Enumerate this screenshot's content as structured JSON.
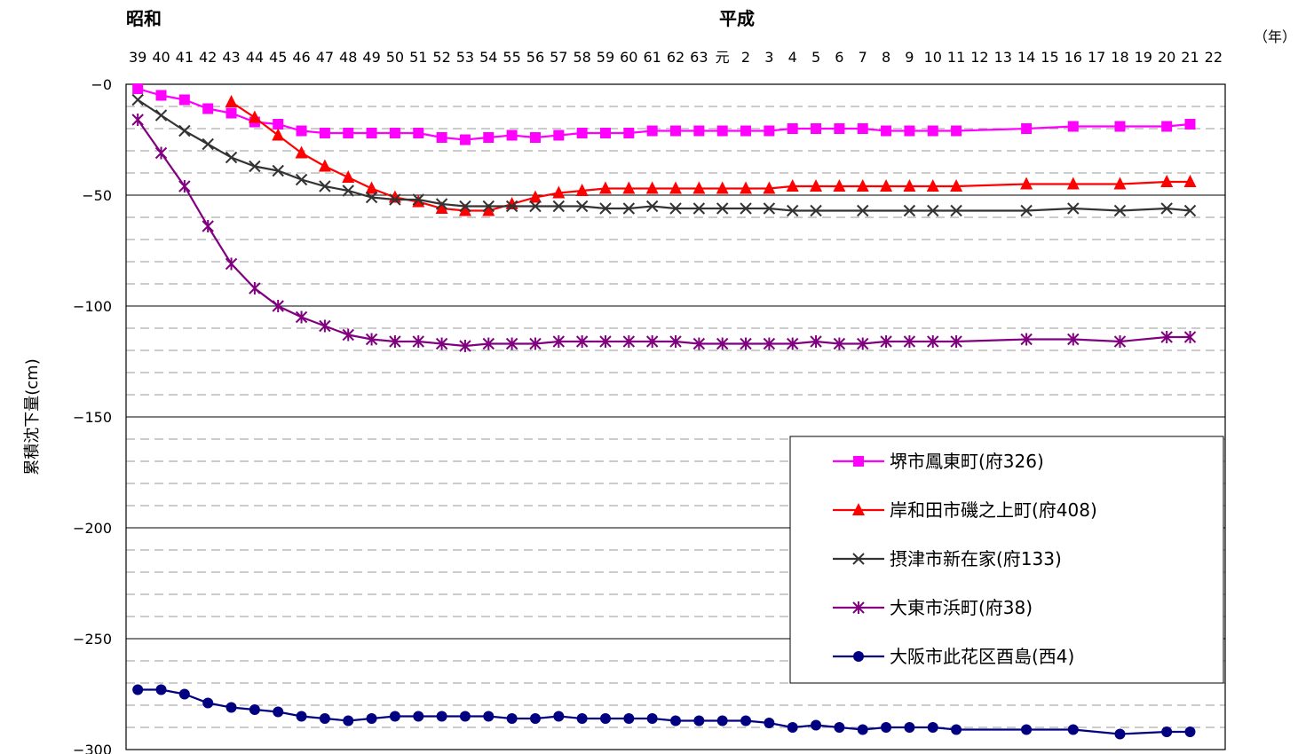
{
  "chart_data": {
    "type": "line",
    "era_labels": [
      "昭和",
      "平成"
    ],
    "x_unit": "（年）",
    "ylabel": "累積沈下量(cm)",
    "ylim": [
      -300,
      0
    ],
    "yticks": [
      "−0",
      "−50",
      "−100",
      "−150",
      "−200",
      "−250",
      "−300"
    ],
    "grid": "major solid, minor dashed",
    "legend_position": "lower-right",
    "categories": [
      "39",
      "40",
      "41",
      "42",
      "43",
      "44",
      "45",
      "46",
      "47",
      "48",
      "49",
      "50",
      "51",
      "52",
      "53",
      "54",
      "55",
      "56",
      "57",
      "58",
      "59",
      "60",
      "61",
      "62",
      "63",
      "元",
      "2",
      "3",
      "4",
      "5",
      "6",
      "7",
      "8",
      "9",
      "10",
      "11",
      "12",
      "13",
      "14",
      "15",
      "16",
      "17",
      "18",
      "19",
      "20",
      "21",
      "22"
    ],
    "series": [
      {
        "name": "堺市鳳東町(府326)",
        "color": "#ff00ff",
        "marker": "square",
        "values": [
          -2,
          -5,
          -7,
          -11,
          -13,
          -17,
          -18,
          -21,
          -22,
          -22,
          -22,
          -22,
          -22,
          -24,
          -25,
          -24,
          -23,
          -24,
          -23,
          -22,
          -22,
          -22,
          -21,
          -21,
          -21,
          -21,
          -21,
          -21,
          -20,
          -20,
          -20,
          -20,
          -21,
          -21,
          -21,
          -21,
          null,
          null,
          -20,
          null,
          -19,
          null,
          -19,
          null,
          -19,
          -18,
          null
        ]
      },
      {
        "name": "岸和田市磯之上町(府408)",
        "color": "#ff0000",
        "marker": "triangle",
        "values": [
          null,
          null,
          null,
          null,
          -8,
          -15,
          -23,
          -31,
          -37,
          -42,
          -47,
          -51,
          -53,
          -56,
          -57,
          -57,
          -54,
          -51,
          -49,
          -48,
          -47,
          -47,
          -47,
          -47,
          -47,
          -47,
          -47,
          -47,
          -46,
          -46,
          -46,
          -46,
          -46,
          -46,
          -46,
          -46,
          null,
          null,
          -45,
          null,
          -45,
          null,
          -45,
          null,
          -44,
          -44,
          null
        ]
      },
      {
        "name": "摂津市新在家(府133)",
        "color": "#333333",
        "marker": "x",
        "values": [
          -7,
          -14,
          -21,
          -27,
          -33,
          -37,
          -39,
          -43,
          -46,
          -48,
          -51,
          -52,
          -52,
          -54,
          -55,
          -55,
          -55,
          -55,
          -55,
          -55,
          -56,
          -56,
          -55,
          -56,
          -56,
          -56,
          -56,
          -56,
          -57,
          -57,
          null,
          -57,
          null,
          -57,
          -57,
          -57,
          null,
          null,
          -57,
          null,
          -56,
          null,
          -57,
          null,
          -56,
          -57,
          null
        ]
      },
      {
        "name": "大東市浜町(府38)",
        "color": "#800080",
        "marker": "star",
        "values": [
          -16,
          -31,
          -46,
          -64,
          -81,
          -92,
          -100,
          -105,
          -109,
          -113,
          -115,
          -116,
          -116,
          -117,
          -118,
          -117,
          -117,
          -117,
          -116,
          -116,
          -116,
          -116,
          -116,
          -116,
          -117,
          -117,
          -117,
          -117,
          -117,
          -116,
          -117,
          -117,
          -116,
          -116,
          -116,
          -116,
          null,
          null,
          -115,
          null,
          -115,
          null,
          -116,
          null,
          -114,
          -114,
          null
        ]
      },
      {
        "name": "大阪市此花区酉島(西4)",
        "color": "#000080",
        "marker": "circle",
        "values": [
          -273,
          -273,
          -275,
          -279,
          -281,
          -282,
          -283,
          -285,
          -286,
          -287,
          -286,
          -285,
          -285,
          -285,
          -285,
          -285,
          -286,
          -286,
          -285,
          -286,
          -286,
          -286,
          -286,
          -287,
          -287,
          -287,
          -287,
          -288,
          -290,
          -289,
          -290,
          -291,
          -290,
          -290,
          -290,
          -291,
          null,
          null,
          -291,
          null,
          -291,
          null,
          -293,
          null,
          -292,
          -292,
          null
        ]
      }
    ]
  }
}
